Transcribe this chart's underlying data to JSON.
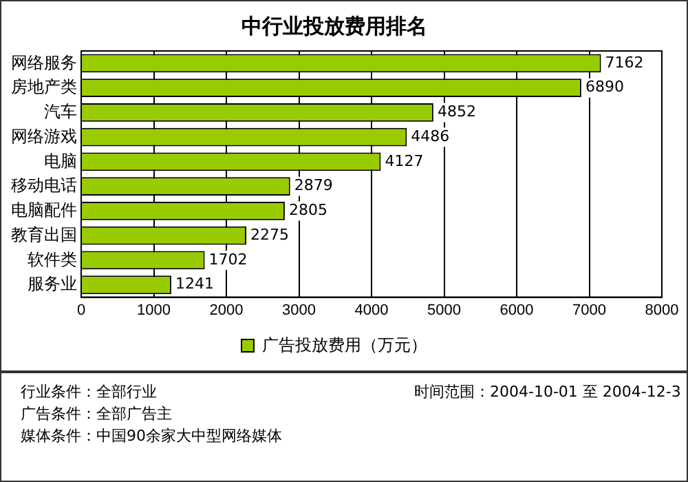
{
  "chart_data": {
    "type": "bar",
    "orientation": "horizontal",
    "title": "中行业投放费用排名",
    "categories": [
      "网络服务",
      "房地产类",
      "汽车",
      "网络游戏",
      "电脑",
      "移动电话",
      "电脑配件",
      "教育出国",
      "软件类",
      "服务业"
    ],
    "series": [
      {
        "name": "广告投放费用（万元）",
        "color": "#99cc00",
        "values": [
          7162,
          6890,
          4852,
          4486,
          4127,
          2879,
          2805,
          2275,
          1702,
          1241
        ]
      }
    ],
    "xlim": [
      0,
      8000
    ],
    "xticks": [
      0,
      1000,
      2000,
      3000,
      4000,
      5000,
      6000,
      7000,
      8000
    ],
    "grid": "x",
    "legend": "bottom",
    "data_labels": true,
    "annotations": [
      "行业条件：全部行业",
      "广告条件：全部广告主",
      "媒体条件：中国90余家大中型网络媒体",
      "时间范围：2004-10-01 至 2004-12-3"
    ]
  }
}
